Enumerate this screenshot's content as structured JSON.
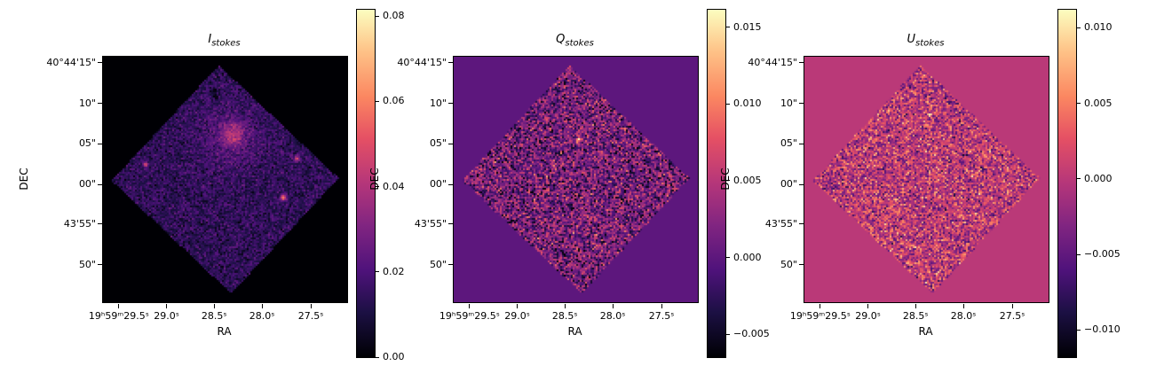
{
  "figure": {
    "background": "#ffffff"
  },
  "chart_data": {
    "type": "heatmap",
    "description": "Three Stokes-parameter sky images (I, Q, U) with individual colorbars; diamond-shaped detector footprint on RA/DEC axes",
    "colormap": "magma",
    "colormap_stops": [
      {
        "pos": 0.0,
        "color": "#000004"
      },
      {
        "pos": 0.13,
        "color": "#1c1044"
      },
      {
        "pos": 0.25,
        "color": "#4f127b"
      },
      {
        "pos": 0.38,
        "color": "#812581"
      },
      {
        "pos": 0.5,
        "color": "#b5367a"
      },
      {
        "pos": 0.63,
        "color": "#e55064"
      },
      {
        "pos": 0.75,
        "color": "#fb8761"
      },
      {
        "pos": 0.88,
        "color": "#fec287"
      },
      {
        "pos": 1.0,
        "color": "#fcfdbf"
      }
    ],
    "xlabel": "RA",
    "ylabel": "DEC",
    "x_ticks": {
      "labels": [
        "19ʰ59ᵐ29.5ˢ",
        "29.0ˢ",
        "28.5ˢ",
        "28.0ˢ",
        "27.5ˢ"
      ],
      "fracs": [
        0.065,
        0.26,
        0.455,
        0.651,
        0.851
      ]
    },
    "y_ticks": {
      "labels": [
        "40°44'15\"",
        "10\"",
        "05\"",
        "00\"",
        "43'55\"",
        "50\""
      ],
      "fracs": [
        0.025,
        0.191,
        0.354,
        0.52,
        0.682,
        0.848
      ]
    },
    "field_shape": "diamond",
    "diamond_corners": [
      [
        0.475,
        0.035
      ],
      [
        0.965,
        0.495
      ],
      [
        0.525,
        0.965
      ],
      [
        0.035,
        0.505
      ]
    ],
    "panels": [
      {
        "id": "I_stokes",
        "title_main": "I",
        "title_sub": "stokes",
        "vmin": 0.0,
        "vmax": 0.0815,
        "background_value": 0.0,
        "noise_mean": 0.014,
        "noise_std": 0.005,
        "colorbar_ticks": {
          "values": [
            0.0,
            0.02,
            0.04,
            0.06,
            0.08
          ],
          "labels": [
            "0.00",
            "0.02",
            "0.04",
            "0.06",
            "0.08"
          ]
        },
        "features": [
          {
            "x": 0.52,
            "y": 0.33,
            "r": 0.09,
            "amp": 0.009
          },
          {
            "x": 0.535,
            "y": 0.315,
            "r": 0.032,
            "amp": 0.02
          },
          {
            "x": 0.315,
            "y": 0.185,
            "r": 0.008,
            "amp": 0.05
          },
          {
            "x": 0.175,
            "y": 0.44,
            "r": 0.007,
            "amp": 0.04
          },
          {
            "x": 0.795,
            "y": 0.415,
            "r": 0.007,
            "amp": 0.04
          },
          {
            "x": 0.74,
            "y": 0.575,
            "r": 0.008,
            "amp": 0.05
          },
          {
            "x": 0.455,
            "y": 0.145,
            "r": 0.013,
            "amp": -0.012
          }
        ]
      },
      {
        "id": "Q_stokes",
        "title_main": "Q",
        "title_sub": "stokes",
        "vmin": -0.0065,
        "vmax": 0.01615,
        "background_value": 0.0,
        "noise_mean": 0.0012,
        "noise_std": 0.0036,
        "colorbar_ticks": {
          "values": [
            -0.005,
            0.0,
            0.005,
            0.01,
            0.015
          ],
          "labels": [
            "−0.005",
            "0.000",
            "0.005",
            "0.010",
            "0.015"
          ]
        },
        "features": [
          {
            "x": 0.513,
            "y": 0.336,
            "r": 0.009,
            "amp": 0.012
          }
        ]
      },
      {
        "id": "U_stokes",
        "title_main": "U",
        "title_sub": "stokes",
        "vmin": -0.0118,
        "vmax": 0.0112,
        "background_value": 0.0,
        "noise_mean": 0.0002,
        "noise_std": 0.0034,
        "colorbar_ticks": {
          "values": [
            -0.01,
            -0.005,
            0.0,
            0.005,
            0.01
          ],
          "labels": [
            "−0.010",
            "−0.005",
            "0.000",
            "0.005",
            "0.010"
          ]
        },
        "features": []
      }
    ]
  }
}
